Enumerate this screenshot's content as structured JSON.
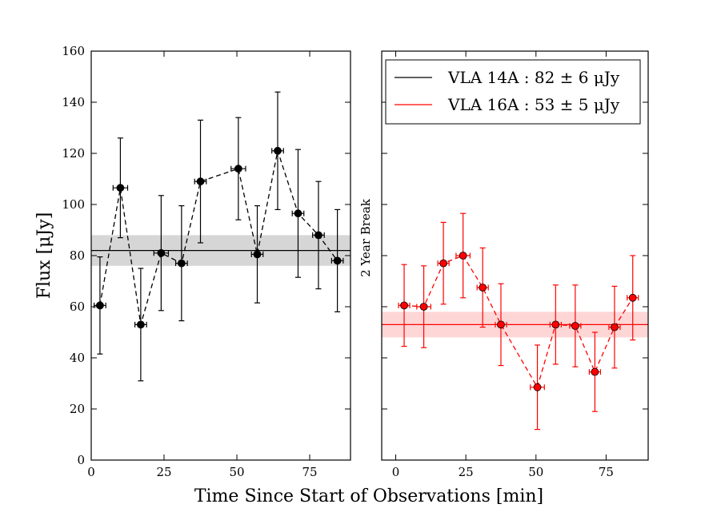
{
  "chart_data": {
    "type": "scatter",
    "xlabel": "Time Since Start of Observations [min]",
    "ylabel": "Flux [μJy]",
    "ylim": [
      0,
      160
    ],
    "yticks": [
      0,
      20,
      40,
      60,
      80,
      100,
      120,
      140,
      160
    ],
    "break_label": "2 Year Break",
    "grid": false,
    "legend_position": "top-right",
    "panels": [
      {
        "xlim": [
          0,
          89
        ],
        "xticks": [
          0,
          25,
          50,
          75
        ],
        "series": "VLA 14A"
      },
      {
        "xlim": [
          -5,
          90
        ],
        "xticks": [
          0,
          25,
          50,
          75
        ],
        "series": "VLA 16A"
      }
    ],
    "series": [
      {
        "name": "VLA 14A",
        "legend_label": "VLA 14A :  82 ± 6 μJy",
        "color": "#000000",
        "band_color": "#d6d6d6",
        "mean": 82,
        "err": 6,
        "x": [
          3,
          10,
          17,
          24,
          31,
          37.5,
          50.5,
          57,
          64,
          71,
          78,
          84.5
        ],
        "y": [
          60.5,
          106.5,
          53,
          81,
          77,
          109,
          114,
          80.5,
          121,
          96.5,
          88,
          78
        ],
        "yerr": [
          19,
          19.5,
          22,
          22.5,
          22.5,
          24,
          20,
          19,
          23,
          25,
          21,
          20
        ],
        "xerr": [
          2,
          2.5,
          2,
          2.5,
          2,
          2,
          2.5,
          2,
          2,
          2,
          2,
          2
        ]
      },
      {
        "name": "VLA 16A",
        "legend_label": "VLA 16A :  53 ± 5 μJy",
        "color": "#ff0000",
        "band_color": "#ffd6d6",
        "mean": 53,
        "err": 5,
        "x": [
          3,
          10,
          17,
          24,
          31,
          37.5,
          50.5,
          57,
          64,
          71,
          78,
          84.5
        ],
        "y": [
          60.5,
          60,
          77,
          80,
          67.5,
          53,
          28.5,
          53,
          52.5,
          34.5,
          52,
          63.5
        ],
        "yerr": [
          16,
          16,
          16,
          16.5,
          15.5,
          16,
          16.5,
          15.5,
          16,
          15.5,
          16,
          16.5
        ],
        "xerr": [
          2,
          2.5,
          2,
          2.5,
          2,
          2,
          2.5,
          2,
          2,
          2,
          2,
          2
        ]
      }
    ]
  }
}
